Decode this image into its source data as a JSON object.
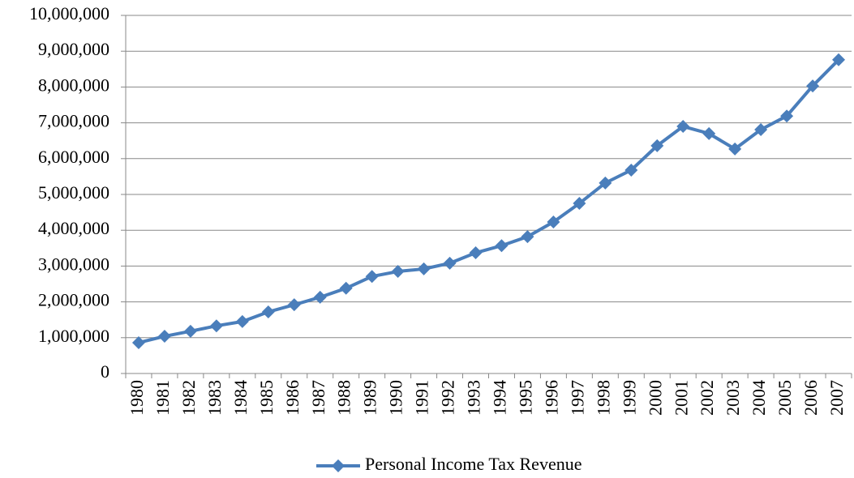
{
  "chart_data": {
    "type": "line",
    "categories": [
      "1980",
      "1981",
      "1982",
      "1983",
      "1984",
      "1985",
      "1986",
      "1987",
      "1988",
      "1989",
      "1990",
      "1991",
      "1992",
      "1993",
      "1994",
      "1995",
      "1996",
      "1997",
      "1998",
      "1999",
      "2000",
      "2001",
      "2002",
      "2003",
      "2004",
      "2005",
      "2006",
      "2007"
    ],
    "series": [
      {
        "name": "Personal Income Tax Revenue",
        "color": "#4a7ebb",
        "values": [
          860000,
          1040000,
          1180000,
          1330000,
          1450000,
          1720000,
          1920000,
          2130000,
          2380000,
          2710000,
          2850000,
          2920000,
          3080000,
          3370000,
          3570000,
          3820000,
          4230000,
          4750000,
          5320000,
          5680000,
          6360000,
          6900000,
          6700000,
          6270000,
          6810000,
          7190000,
          8030000,
          8760000
        ]
      }
    ],
    "ylim": [
      0,
      10000000
    ],
    "yticks": [
      0,
      {
        "value": 1000000,
        "label": "1,000,000"
      },
      {
        "value": 2000000,
        "label": "2,000,000"
      },
      {
        "value": 3000000,
        "label": "3,000,000"
      },
      {
        "value": 4000000,
        "label": "4,000,000"
      },
      {
        "value": 5000000,
        "label": "5,000,000"
      },
      {
        "value": 6000000,
        "label": "6,000,000"
      },
      {
        "value": 7000000,
        "label": "7,000,000"
      },
      {
        "value": 8000000,
        "label": "8,000,000"
      },
      {
        "value": 9000000,
        "label": "9,000,000"
      },
      {
        "value": 10000000,
        "label": "10,000,000"
      }
    ],
    "grid": true,
    "legend": "bottom"
  }
}
